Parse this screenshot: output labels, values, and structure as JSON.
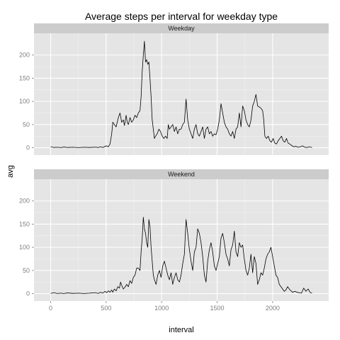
{
  "chart_data": {
    "type": "line",
    "title": "Average steps per interval for weekday type",
    "xlabel": "interval",
    "ylabel": "avg",
    "xlim": [
      -150,
      2505
    ],
    "ylim": [
      -16,
      247
    ],
    "x_ticks": [
      0,
      500,
      1000,
      1500,
      2000
    ],
    "y_ticks": [
      0,
      50,
      100,
      150,
      200
    ],
    "grid": true,
    "colors": {
      "panel_bg": "#e5e5e5",
      "grid_major": "#ffffff",
      "grid_minor": "#f2f2f2",
      "strip_bg": "#cccccc",
      "line": "#000000",
      "tick_text": "#7f7f7f"
    },
    "panels": [
      {
        "name": "Weekday",
        "points": [
          [
            0,
            2
          ],
          [
            30,
            0.5
          ],
          [
            60,
            1
          ],
          [
            90,
            0.3
          ],
          [
            120,
            1.5
          ],
          [
            150,
            0.5
          ],
          [
            200,
            1
          ],
          [
            250,
            0.3
          ],
          [
            300,
            1
          ],
          [
            350,
            0.5
          ],
          [
            400,
            1.2
          ],
          [
            430,
            0.5
          ],
          [
            450,
            2
          ],
          [
            470,
            0.5
          ],
          [
            500,
            4
          ],
          [
            520,
            2
          ],
          [
            535,
            8
          ],
          [
            550,
            30
          ],
          [
            560,
            55
          ],
          [
            575,
            50
          ],
          [
            590,
            45
          ],
          [
            610,
            65
          ],
          [
            625,
            75
          ],
          [
            640,
            55
          ],
          [
            655,
            60
          ],
          [
            665,
            48
          ],
          [
            680,
            70
          ],
          [
            690,
            55
          ],
          [
            700,
            50
          ],
          [
            715,
            65
          ],
          [
            730,
            55
          ],
          [
            745,
            60
          ],
          [
            760,
            70
          ],
          [
            775,
            65
          ],
          [
            790,
            75
          ],
          [
            805,
            80
          ],
          [
            815,
            110
          ],
          [
            825,
            165
          ],
          [
            835,
            200
          ],
          [
            845,
            230
          ],
          [
            855,
            185
          ],
          [
            865,
            190
          ],
          [
            875,
            180
          ],
          [
            885,
            185
          ],
          [
            895,
            150
          ],
          [
            905,
            110
          ],
          [
            915,
            60
          ],
          [
            925,
            40
          ],
          [
            935,
            20
          ],
          [
            945,
            25
          ],
          [
            960,
            30
          ],
          [
            975,
            40
          ],
          [
            990,
            35
          ],
          [
            1005,
            25
          ],
          [
            1020,
            20
          ],
          [
            1035,
            25
          ],
          [
            1050,
            20
          ],
          [
            1060,
            50
          ],
          [
            1070,
            40
          ],
          [
            1085,
            45
          ],
          [
            1100,
            50
          ],
          [
            1115,
            35
          ],
          [
            1130,
            45
          ],
          [
            1145,
            30
          ],
          [
            1160,
            40
          ],
          [
            1175,
            40
          ],
          [
            1190,
            50
          ],
          [
            1205,
            55
          ],
          [
            1220,
            105
          ],
          [
            1235,
            60
          ],
          [
            1250,
            40
          ],
          [
            1265,
            30
          ],
          [
            1280,
            20
          ],
          [
            1295,
            40
          ],
          [
            1310,
            50
          ],
          [
            1325,
            30
          ],
          [
            1340,
            25
          ],
          [
            1355,
            35
          ],
          [
            1370,
            45
          ],
          [
            1385,
            20
          ],
          [
            1400,
            40
          ],
          [
            1415,
            45
          ],
          [
            1430,
            30
          ],
          [
            1445,
            35
          ],
          [
            1460,
            25
          ],
          [
            1475,
            30
          ],
          [
            1490,
            28
          ],
          [
            1505,
            40
          ],
          [
            1520,
            60
          ],
          [
            1535,
            95
          ],
          [
            1550,
            75
          ],
          [
            1565,
            55
          ],
          [
            1580,
            45
          ],
          [
            1595,
            40
          ],
          [
            1610,
            30
          ],
          [
            1625,
            25
          ],
          [
            1640,
            35
          ],
          [
            1655,
            20
          ],
          [
            1670,
            40
          ],
          [
            1685,
            45
          ],
          [
            1700,
            75
          ],
          [
            1715,
            45
          ],
          [
            1730,
            90
          ],
          [
            1745,
            80
          ],
          [
            1760,
            60
          ],
          [
            1775,
            50
          ],
          [
            1790,
            45
          ],
          [
            1805,
            60
          ],
          [
            1820,
            90
          ],
          [
            1835,
            100
          ],
          [
            1850,
            115
          ],
          [
            1865,
            90
          ],
          [
            1880,
            88
          ],
          [
            1895,
            85
          ],
          [
            1910,
            80
          ],
          [
            1920,
            60
          ],
          [
            1930,
            25
          ],
          [
            1945,
            20
          ],
          [
            1960,
            25
          ],
          [
            1975,
            15
          ],
          [
            1990,
            12
          ],
          [
            2005,
            20
          ],
          [
            2020,
            10
          ],
          [
            2035,
            8
          ],
          [
            2050,
            15
          ],
          [
            2065,
            20
          ],
          [
            2080,
            25
          ],
          [
            2095,
            15
          ],
          [
            2110,
            12
          ],
          [
            2125,
            20
          ],
          [
            2140,
            10
          ],
          [
            2155,
            8
          ],
          [
            2170,
            5
          ],
          [
            2190,
            2
          ],
          [
            2210,
            3
          ],
          [
            2230,
            1
          ],
          [
            2250,
            2
          ],
          [
            2270,
            4
          ],
          [
            2290,
            1
          ],
          [
            2310,
            0.5
          ],
          [
            2330,
            2
          ],
          [
            2355,
            0.5
          ]
        ]
      },
      {
        "name": "Weekend",
        "points": [
          [
            0,
            0.5
          ],
          [
            30,
            2
          ],
          [
            60,
            0.3
          ],
          [
            90,
            1
          ],
          [
            120,
            0.2
          ],
          [
            150,
            1.5
          ],
          [
            200,
            0.5
          ],
          [
            250,
            1
          ],
          [
            300,
            0.3
          ],
          [
            350,
            1
          ],
          [
            400,
            2
          ],
          [
            430,
            0.5
          ],
          [
            450,
            3
          ],
          [
            470,
            1
          ],
          [
            490,
            5
          ],
          [
            505,
            2
          ],
          [
            520,
            6
          ],
          [
            535,
            3
          ],
          [
            550,
            8
          ],
          [
            560,
            3
          ],
          [
            575,
            10
          ],
          [
            590,
            6
          ],
          [
            605,
            15
          ],
          [
            620,
            12
          ],
          [
            630,
            25
          ],
          [
            640,
            18
          ],
          [
            655,
            10
          ],
          [
            670,
            14
          ],
          [
            685,
            20
          ],
          [
            700,
            15
          ],
          [
            715,
            28
          ],
          [
            730,
            22
          ],
          [
            745,
            35
          ],
          [
            760,
            40
          ],
          [
            775,
            55
          ],
          [
            790,
            55
          ],
          [
            805,
            50
          ],
          [
            815,
            90
          ],
          [
            825,
            120
          ],
          [
            835,
            165
          ],
          [
            845,
            140
          ],
          [
            855,
            130
          ],
          [
            865,
            110
          ],
          [
            875,
            100
          ],
          [
            885,
            160
          ],
          [
            895,
            145
          ],
          [
            905,
            100
          ],
          [
            915,
            70
          ],
          [
            925,
            40
          ],
          [
            935,
            30
          ],
          [
            950,
            20
          ],
          [
            965,
            40
          ],
          [
            980,
            50
          ],
          [
            995,
            35
          ],
          [
            1010,
            60
          ],
          [
            1025,
            70
          ],
          [
            1040,
            55
          ],
          [
            1055,
            40
          ],
          [
            1070,
            30
          ],
          [
            1085,
            45
          ],
          [
            1100,
            20
          ],
          [
            1115,
            35
          ],
          [
            1130,
            45
          ],
          [
            1145,
            30
          ],
          [
            1160,
            25
          ],
          [
            1175,
            40
          ],
          [
            1190,
            65
          ],
          [
            1205,
            85
          ],
          [
            1220,
            160
          ],
          [
            1235,
            130
          ],
          [
            1250,
            95
          ],
          [
            1265,
            70
          ],
          [
            1280,
            50
          ],
          [
            1295,
            90
          ],
          [
            1310,
            100
          ],
          [
            1325,
            140
          ],
          [
            1340,
            130
          ],
          [
            1355,
            110
          ],
          [
            1370,
            80
          ],
          [
            1385,
            40
          ],
          [
            1400,
            25
          ],
          [
            1415,
            70
          ],
          [
            1430,
            95
          ],
          [
            1445,
            110
          ],
          [
            1460,
            90
          ],
          [
            1475,
            60
          ],
          [
            1490,
            50
          ],
          [
            1505,
            65
          ],
          [
            1520,
            80
          ],
          [
            1535,
            120
          ],
          [
            1550,
            130
          ],
          [
            1565,
            110
          ],
          [
            1580,
            85
          ],
          [
            1595,
            75
          ],
          [
            1610,
            60
          ],
          [
            1625,
            95
          ],
          [
            1640,
            105
          ],
          [
            1655,
            135
          ],
          [
            1670,
            90
          ],
          [
            1685,
            80
          ],
          [
            1700,
            110
          ],
          [
            1715,
            100
          ],
          [
            1730,
            105
          ],
          [
            1745,
            75
          ],
          [
            1760,
            50
          ],
          [
            1775,
            40
          ],
          [
            1790,
            55
          ],
          [
            1805,
            85
          ],
          [
            1820,
            45
          ],
          [
            1835,
            80
          ],
          [
            1850,
            65
          ],
          [
            1865,
            20
          ],
          [
            1880,
            30
          ],
          [
            1895,
            45
          ],
          [
            1910,
            40
          ],
          [
            1925,
            55
          ],
          [
            1940,
            75
          ],
          [
            1955,
            85
          ],
          [
            1970,
            90
          ],
          [
            1985,
            100
          ],
          [
            2000,
            80
          ],
          [
            2015,
            60
          ],
          [
            2030,
            40
          ],
          [
            2045,
            35
          ],
          [
            2060,
            20
          ],
          [
            2075,
            15
          ],
          [
            2090,
            10
          ],
          [
            2105,
            5
          ],
          [
            2120,
            8
          ],
          [
            2135,
            15
          ],
          [
            2150,
            10
          ],
          [
            2165,
            6
          ],
          [
            2180,
            3
          ],
          [
            2200,
            5
          ],
          [
            2220,
            3
          ],
          [
            2240,
            2
          ],
          [
            2260,
            1
          ],
          [
            2280,
            12
          ],
          [
            2300,
            5
          ],
          [
            2320,
            10
          ],
          [
            2340,
            2
          ],
          [
            2355,
            1
          ]
        ]
      }
    ]
  }
}
